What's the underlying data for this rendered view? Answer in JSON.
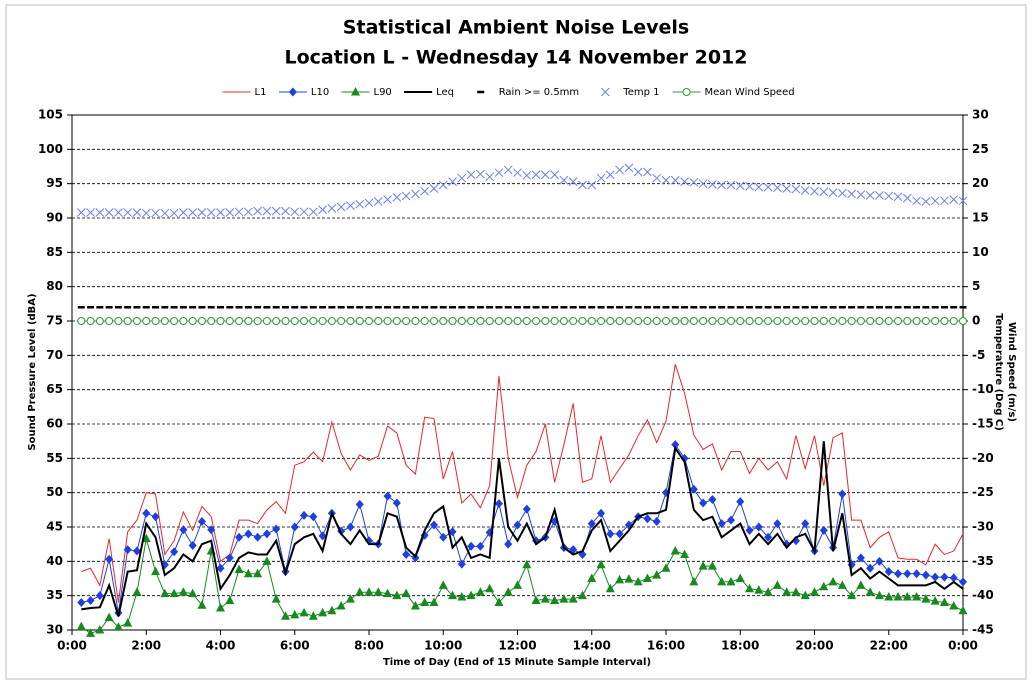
{
  "chart_data": {
    "type": "line",
    "title": "Statistical Ambient Noise Levels",
    "subtitle": "Location L - Wednesday 14 November 2012",
    "x_label": "Time of Day (End of 15 Minute  Sample Interval)",
    "y_label": "Sound Pressure Level (dBA)",
    "y2_label": "Wind Speed  (m/s)",
    "y2_label_2": "Temperature  (Deg C)",
    "xlim": [
      0,
      24
    ],
    "xticks": [
      {
        "value": 0,
        "label": "0:00"
      },
      {
        "value": 2,
        "label": "2:00"
      },
      {
        "value": 4,
        "label": "4:00"
      },
      {
        "value": 6,
        "label": "6:00"
      },
      {
        "value": 8,
        "label": "8:00"
      },
      {
        "value": 10,
        "label": "10:00"
      },
      {
        "value": 12,
        "label": "12:00"
      },
      {
        "value": 14,
        "label": "14:00"
      },
      {
        "value": 16,
        "label": "16:00"
      },
      {
        "value": 18,
        "label": "18:00"
      },
      {
        "value": 20,
        "label": "20:00"
      },
      {
        "value": 22,
        "label": "22:00"
      },
      {
        "value": 24,
        "label": "0:00"
      }
    ],
    "ylim": [
      30,
      105
    ],
    "yticks": [
      30,
      35,
      40,
      45,
      50,
      55,
      60,
      65,
      70,
      75,
      80,
      85,
      90,
      95,
      100,
      105
    ],
    "y2lim": [
      -45,
      30
    ],
    "y2ticks": [
      -45,
      -40,
      -35,
      -30,
      -25,
      -20,
      -15,
      -10,
      -5,
      0,
      5,
      10,
      15,
      20,
      25,
      30
    ],
    "grid": true,
    "legend": "top",
    "x": [
      0.25,
      0.5,
      0.75,
      1,
      1.25,
      1.5,
      1.75,
      2,
      2.25,
      2.5,
      2.75,
      3,
      3.25,
      3.5,
      3.75,
      4,
      4.25,
      4.5,
      4.75,
      5,
      5.25,
      5.5,
      5.75,
      6,
      6.25,
      6.5,
      6.75,
      7,
      7.25,
      7.5,
      7.75,
      8,
      8.25,
      8.5,
      8.75,
      9,
      9.25,
      9.5,
      9.75,
      10,
      10.25,
      10.5,
      10.75,
      11,
      11.25,
      11.5,
      11.75,
      12,
      12.25,
      12.5,
      12.75,
      13,
      13.25,
      13.5,
      13.75,
      14,
      14.25,
      14.5,
      14.75,
      15,
      15.25,
      15.5,
      15.75,
      16,
      16.25,
      16.5,
      16.75,
      17,
      17.25,
      17.5,
      17.75,
      18,
      18.25,
      18.5,
      18.75,
      19,
      19.25,
      19.5,
      19.75,
      20,
      20.25,
      20.5,
      20.75,
      21,
      21.25,
      21.5,
      21.75,
      22,
      22.25,
      22.5,
      22.75,
      23,
      23.25,
      23.5,
      23.75,
      24
    ],
    "series": [
      {
        "name": "L1",
        "color": "#e8282b",
        "width": 1,
        "line": true,
        "marker": "none",
        "axis": "y",
        "values": [
          38.5,
          39,
          36.5,
          43.3,
          34,
          44.3,
          46,
          50,
          49.8,
          41,
          43,
          47.2,
          44.5,
          48,
          46.5,
          40,
          41,
          46,
          46,
          45.5,
          47.5,
          48.7,
          47,
          54,
          54.5,
          55.9,
          54.5,
          60.3,
          55.7,
          53.3,
          55.5,
          54.7,
          55.3,
          59.7,
          58.7,
          54,
          52.7,
          61,
          60.8,
          52,
          56,
          48.5,
          49.8,
          47.8,
          51,
          67,
          55,
          49.3,
          54,
          56,
          60,
          51.5,
          57,
          63,
          51.5,
          52,
          58.3,
          51.5,
          53.5,
          55.5,
          58.3,
          60.6,
          57.3,
          60.4,
          68.7,
          64.5,
          58.4,
          56.3,
          57.1,
          53.3,
          56,
          56,
          52.8,
          55,
          53.3,
          54.5,
          52,
          58.3,
          53.5,
          58.3,
          51,
          58,
          58.7,
          46,
          46,
          42,
          43.5,
          44.3,
          40.5,
          40.3,
          40.3,
          39.5,
          42.5,
          41,
          41.5,
          44
        ]
      },
      {
        "name": "L10",
        "color": "#1f3fe0",
        "width": 1,
        "line": true,
        "marker": "diamond",
        "axis": "y",
        "values": [
          34,
          34.3,
          35,
          40.3,
          32.5,
          41.7,
          41.5,
          47,
          46.5,
          39.5,
          41.4,
          44.6,
          42.3,
          45.8,
          44.6,
          39,
          40.5,
          43.5,
          44,
          43.5,
          44,
          44.7,
          38.5,
          45,
          46.7,
          46.5,
          43.7,
          47,
          44.4,
          45,
          48.3,
          43,
          42.5,
          49.5,
          48.5,
          41,
          40.5,
          43.8,
          45.3,
          43.5,
          44.3,
          39.6,
          42.2,
          42.2,
          44.2,
          48.4,
          42.5,
          45.3,
          47.6,
          43,
          43.5,
          45.8,
          42,
          41.7,
          41,
          45.5,
          47,
          44,
          44,
          45.3,
          46.5,
          46.2,
          45.8,
          50,
          57,
          55,
          50.5,
          48.5,
          49,
          45.5,
          46,
          48.7,
          44.5,
          45,
          43.5,
          45.5,
          42.5,
          43,
          45.5,
          41.5,
          44.5,
          42,
          49.8,
          39.5,
          40.5,
          39,
          40,
          38.5,
          38.2,
          38.2,
          38.2,
          38,
          37.7,
          37.7,
          37.6,
          37
        ]
      },
      {
        "name": "L90",
        "color": "#178a1f",
        "width": 1,
        "line": true,
        "marker": "triangle",
        "axis": "y",
        "values": [
          30.5,
          29.5,
          30,
          31.8,
          30.4,
          31,
          35.5,
          43.3,
          38.5,
          35.3,
          35.3,
          35.5,
          35.3,
          33.6,
          41.5,
          33.2,
          34.3,
          38.8,
          38.2,
          38.2,
          40,
          34.5,
          32,
          32.2,
          32.5,
          32,
          32.5,
          32.8,
          33.5,
          34.5,
          35.5,
          35.5,
          35.5,
          35.3,
          35,
          35.3,
          33.5,
          34,
          34,
          36.5,
          35,
          34.8,
          35,
          35.5,
          36,
          34,
          35.5,
          36.5,
          39.5,
          34.3,
          34.5,
          34.3,
          34.5,
          34.5,
          35,
          37.5,
          39.5,
          36,
          37.3,
          37.4,
          37,
          37.5,
          38,
          39,
          41.5,
          41,
          37,
          39.3,
          39.3,
          37,
          37,
          37.5,
          36,
          35.8,
          35.5,
          36.5,
          35.5,
          35.5,
          35,
          35.5,
          36.3,
          37,
          36.5,
          35,
          36.5,
          35.5,
          35,
          34.8,
          34.8,
          34.8,
          34.8,
          34.5,
          34.2,
          34,
          33.5,
          32.8
        ]
      },
      {
        "name": "Leq",
        "color": "#000000",
        "width": 2,
        "line": true,
        "marker": "none",
        "axis": "y",
        "values": [
          33,
          33.2,
          33.3,
          36.5,
          32,
          38.5,
          38.7,
          45.5,
          43.5,
          38,
          39,
          41,
          40,
          42.5,
          43,
          36,
          38,
          40.5,
          41.3,
          41,
          41,
          43,
          38.3,
          42.5,
          43.5,
          44,
          41.5,
          47,
          44,
          42.5,
          44.5,
          42.5,
          42.5,
          47,
          46.5,
          42,
          40.7,
          44.5,
          47,
          48,
          42,
          43.5,
          40.5,
          41,
          40.5,
          55,
          45,
          43,
          45.5,
          42.5,
          43.5,
          47.5,
          42,
          41,
          41.5,
          44.5,
          46,
          41.5,
          43,
          44.5,
          46.5,
          47,
          47,
          47.5,
          56.5,
          54.5,
          47.5,
          46,
          46.5,
          43.5,
          44.5,
          45.5,
          42.5,
          44,
          42.5,
          44,
          42,
          43.5,
          44,
          41.5,
          57.5,
          41.5,
          47,
          38,
          39,
          37.5,
          38.5,
          37.5,
          36.5,
          36.5,
          36.5,
          36.5,
          37,
          36,
          37,
          36
        ]
      },
      {
        "name": "Rain >= 0.5mm",
        "color": "#000000",
        "width": 0,
        "line": false,
        "marker": "dash",
        "axis": "y2",
        "values": [
          2,
          2,
          2,
          2,
          2,
          2,
          2,
          2,
          2,
          2,
          2,
          2,
          2,
          2,
          2,
          2,
          2,
          2,
          2,
          2,
          2,
          2,
          2,
          2,
          2,
          2,
          2,
          2,
          2,
          2,
          2,
          2,
          2,
          2,
          2,
          2,
          2,
          2,
          2,
          2,
          2,
          2,
          2,
          2,
          2,
          2,
          2,
          2,
          2,
          2,
          2,
          2,
          2,
          2,
          2,
          2,
          2,
          2,
          2,
          2,
          2,
          2,
          2,
          2,
          2,
          2,
          2,
          2,
          2,
          2,
          2,
          2,
          2,
          2,
          2,
          2,
          2,
          2,
          2,
          2,
          2,
          2,
          2,
          2,
          2,
          2,
          2,
          2,
          2,
          2,
          2,
          2,
          2,
          2,
          2,
          2
        ]
      },
      {
        "name": "Temp 1",
        "color": "#6b7ff0",
        "width": 0,
        "line": false,
        "marker": "x",
        "axis": "y2",
        "values": [
          15.8,
          15.8,
          15.8,
          15.8,
          15.8,
          15.8,
          15.8,
          15.7,
          15.7,
          15.7,
          15.7,
          15.8,
          15.8,
          15.8,
          15.8,
          15.8,
          15.8,
          15.9,
          15.9,
          16.0,
          16.0,
          16.0,
          16.0,
          15.9,
          15.9,
          15.9,
          16.2,
          16.4,
          16.6,
          16.8,
          17.0,
          17.2,
          17.4,
          17.7,
          18.0,
          18.2,
          18.5,
          18.9,
          19.3,
          19.8,
          20.3,
          20.8,
          21.3,
          21.4,
          21.0,
          21.6,
          22.0,
          21.6,
          21.2,
          21.3,
          21.3,
          21.3,
          20.5,
          20.3,
          19.8,
          19.8,
          20.8,
          21.3,
          22.0,
          22.3,
          21.7,
          21.7,
          20.8,
          20.5,
          20.5,
          20.3,
          20.2,
          20.0,
          19.9,
          19.8,
          19.8,
          19.7,
          19.6,
          19.5,
          19.5,
          19.4,
          19.3,
          19.2,
          19.0,
          18.9,
          18.8,
          18.7,
          18.6,
          18.5,
          18.4,
          18.3,
          18.3,
          18.2,
          18.1,
          17.9,
          17.5,
          17.4,
          17.5,
          17.5,
          17.7,
          17.5
        ]
      },
      {
        "name": "Mean Wind Speed",
        "color": "#2e9a3a",
        "width": 1,
        "line": true,
        "marker": "circle",
        "axis": "y2",
        "values": [
          0,
          0,
          0,
          0,
          0,
          0,
          0,
          0,
          0,
          0,
          0,
          0,
          0,
          0,
          0,
          0,
          0,
          0,
          0,
          0,
          0,
          0,
          0,
          0,
          0,
          0,
          0,
          0,
          0,
          0,
          0,
          0,
          0,
          0,
          0,
          0,
          0,
          0,
          0,
          0,
          0,
          0,
          0,
          0,
          0,
          0,
          0,
          0,
          0,
          0,
          0,
          0,
          0,
          0,
          0,
          0,
          0,
          0,
          0,
          0,
          0,
          0,
          0,
          0,
          0,
          0,
          0,
          0,
          0,
          0,
          0,
          0,
          0,
          0,
          0,
          0,
          0,
          0,
          0,
          0,
          0,
          0,
          0,
          0,
          0,
          0,
          0,
          0,
          0,
          0,
          0,
          0,
          0,
          0,
          0,
          0
        ]
      }
    ]
  }
}
